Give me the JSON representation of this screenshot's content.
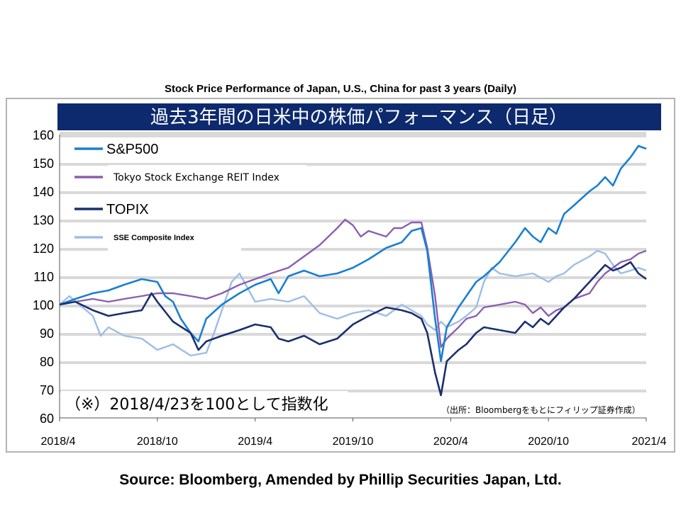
{
  "header": {
    "caption": "Stock Price Performance of Japan, U.S., China for past 3 years (Daily)"
  },
  "footer": {
    "caption": "Source: Bloomberg, Amended by Phillip Securities Japan, Ltd."
  },
  "chart_data": {
    "type": "line",
    "title": "過去3年間の日米中の株価パフォーマンス（日足）",
    "note": "（※）2018/4/23を100として指数化",
    "source_note": "（出所：Bloombergをもとにフィリップ証券作成）",
    "ylim": [
      60,
      160
    ],
    "yticks": [
      "160",
      "150",
      "140",
      "130",
      "120",
      "110",
      "100",
      "90",
      "80",
      "70",
      "60"
    ],
    "xlim": [
      2018.25,
      2021.25
    ],
    "xticks": [
      {
        "label": "2018/4",
        "x": 2018.25
      },
      {
        "label": "2018/10",
        "x": 2018.75
      },
      {
        "label": "2019/4",
        "x": 2019.25
      },
      {
        "label": "2019/10",
        "x": 2019.75
      },
      {
        "label": "2020/4",
        "x": 2020.25
      },
      {
        "label": "2020/10",
        "x": 2020.75
      },
      {
        "label": "2021/4",
        "x": 2021.25
      }
    ],
    "grid": true,
    "legend_position": "top-left",
    "series": [
      {
        "name": "S&P500",
        "color": "#1a7fd1",
        "width": 2.6,
        "legend_style": "big",
        "points": [
          [
            2018.25,
            100
          ],
          [
            2018.33,
            102
          ],
          [
            2018.42,
            104
          ],
          [
            2018.5,
            105
          ],
          [
            2018.58,
            107
          ],
          [
            2018.67,
            109
          ],
          [
            2018.75,
            108
          ],
          [
            2018.79,
            103
          ],
          [
            2018.83,
            101
          ],
          [
            2018.87,
            95
          ],
          [
            2018.92,
            90
          ],
          [
            2018.96,
            87
          ],
          [
            2019.0,
            95
          ],
          [
            2019.08,
            100
          ],
          [
            2019.17,
            104
          ],
          [
            2019.25,
            107
          ],
          [
            2019.33,
            109
          ],
          [
            2019.37,
            104
          ],
          [
            2019.42,
            110
          ],
          [
            2019.5,
            112
          ],
          [
            2019.58,
            110
          ],
          [
            2019.67,
            111
          ],
          [
            2019.75,
            113
          ],
          [
            2019.83,
            116
          ],
          [
            2019.92,
            120
          ],
          [
            2020.0,
            122
          ],
          [
            2020.05,
            126
          ],
          [
            2020.1,
            127
          ],
          [
            2020.13,
            119
          ],
          [
            2020.17,
            95
          ],
          [
            2020.2,
            80
          ],
          [
            2020.23,
            92
          ],
          [
            2020.29,
            99
          ],
          [
            2020.33,
            103
          ],
          [
            2020.38,
            108
          ],
          [
            2020.42,
            110
          ],
          [
            2020.5,
            115
          ],
          [
            2020.58,
            122
          ],
          [
            2020.63,
            127
          ],
          [
            2020.67,
            124
          ],
          [
            2020.71,
            122
          ],
          [
            2020.75,
            127
          ],
          [
            2020.79,
            125
          ],
          [
            2020.83,
            132
          ],
          [
            2020.88,
            135
          ],
          [
            2020.96,
            140
          ],
          [
            2021.0,
            142
          ],
          [
            2021.04,
            145
          ],
          [
            2021.08,
            142
          ],
          [
            2021.12,
            148
          ],
          [
            2021.17,
            152
          ],
          [
            2021.21,
            156
          ],
          [
            2021.25,
            155
          ]
        ]
      },
      {
        "name": "Tokyo Stock Exchange REIT Index",
        "color": "#8a5fb0",
        "width": 2.4,
        "legend_style": "mid",
        "points": [
          [
            2018.25,
            100
          ],
          [
            2018.33,
            101
          ],
          [
            2018.42,
            102
          ],
          [
            2018.5,
            101
          ],
          [
            2018.58,
            102
          ],
          [
            2018.67,
            103
          ],
          [
            2018.75,
            104
          ],
          [
            2018.83,
            104
          ],
          [
            2018.92,
            103
          ],
          [
            2019.0,
            102
          ],
          [
            2019.08,
            104
          ],
          [
            2019.17,
            107
          ],
          [
            2019.25,
            109
          ],
          [
            2019.33,
            111
          ],
          [
            2019.42,
            113
          ],
          [
            2019.5,
            117
          ],
          [
            2019.58,
            121
          ],
          [
            2019.67,
            127
          ],
          [
            2019.71,
            130
          ],
          [
            2019.75,
            128
          ],
          [
            2019.79,
            124
          ],
          [
            2019.83,
            126
          ],
          [
            2019.92,
            124
          ],
          [
            2019.96,
            127
          ],
          [
            2020.0,
            127
          ],
          [
            2020.05,
            129
          ],
          [
            2020.1,
            129
          ],
          [
            2020.13,
            120
          ],
          [
            2020.17,
            103
          ],
          [
            2020.2,
            85
          ],
          [
            2020.23,
            88
          ],
          [
            2020.29,
            92
          ],
          [
            2020.33,
            95
          ],
          [
            2020.38,
            96
          ],
          [
            2020.42,
            99
          ],
          [
            2020.5,
            100
          ],
          [
            2020.58,
            101
          ],
          [
            2020.63,
            100
          ],
          [
            2020.67,
            97
          ],
          [
            2020.71,
            99
          ],
          [
            2020.75,
            96
          ],
          [
            2020.79,
            98
          ],
          [
            2020.83,
            99
          ],
          [
            2020.88,
            102
          ],
          [
            2020.96,
            104
          ],
          [
            2021.0,
            108
          ],
          [
            2021.04,
            111
          ],
          [
            2021.08,
            113
          ],
          [
            2021.12,
            115
          ],
          [
            2021.17,
            116
          ],
          [
            2021.21,
            118
          ],
          [
            2021.25,
            119
          ]
        ]
      },
      {
        "name": "TOPIX",
        "color": "#1b2f6e",
        "width": 2.6,
        "legend_style": "big",
        "points": [
          [
            2018.25,
            100
          ],
          [
            2018.33,
            101
          ],
          [
            2018.42,
            98
          ],
          [
            2018.5,
            96
          ],
          [
            2018.58,
            97
          ],
          [
            2018.67,
            98
          ],
          [
            2018.72,
            104
          ],
          [
            2018.75,
            101
          ],
          [
            2018.83,
            94
          ],
          [
            2018.92,
            90
          ],
          [
            2018.96,
            84
          ],
          [
            2019.0,
            87
          ],
          [
            2019.08,
            89
          ],
          [
            2019.17,
            91
          ],
          [
            2019.25,
            93
          ],
          [
            2019.33,
            92
          ],
          [
            2019.37,
            88
          ],
          [
            2019.42,
            87
          ],
          [
            2019.5,
            89
          ],
          [
            2019.58,
            86
          ],
          [
            2019.67,
            88
          ],
          [
            2019.75,
            93
          ],
          [
            2019.83,
            96
          ],
          [
            2019.92,
            99
          ],
          [
            2020.0,
            98
          ],
          [
            2020.05,
            97
          ],
          [
            2020.1,
            95
          ],
          [
            2020.13,
            90
          ],
          [
            2020.17,
            76
          ],
          [
            2020.2,
            68
          ],
          [
            2020.23,
            80
          ],
          [
            2020.29,
            84
          ],
          [
            2020.33,
            86
          ],
          [
            2020.38,
            90
          ],
          [
            2020.42,
            92
          ],
          [
            2020.5,
            91
          ],
          [
            2020.58,
            90
          ],
          [
            2020.63,
            94
          ],
          [
            2020.67,
            92
          ],
          [
            2020.71,
            95
          ],
          [
            2020.75,
            93
          ],
          [
            2020.79,
            96
          ],
          [
            2020.83,
            99
          ],
          [
            2020.88,
            102
          ],
          [
            2020.96,
            108
          ],
          [
            2021.0,
            111
          ],
          [
            2021.04,
            114
          ],
          [
            2021.08,
            112
          ],
          [
            2021.12,
            113
          ],
          [
            2021.17,
            115
          ],
          [
            2021.21,
            111
          ],
          [
            2021.25,
            109
          ]
        ]
      },
      {
        "name": "SSE Composite Index",
        "color": "#9dbde6",
        "width": 2.4,
        "legend_style": "small",
        "points": [
          [
            2018.25,
            100
          ],
          [
            2018.3,
            103
          ],
          [
            2018.35,
            100
          ],
          [
            2018.42,
            96
          ],
          [
            2018.46,
            89
          ],
          [
            2018.5,
            92
          ],
          [
            2018.58,
            89
          ],
          [
            2018.67,
            88
          ],
          [
            2018.75,
            84
          ],
          [
            2018.83,
            86
          ],
          [
            2018.92,
            82
          ],
          [
            2019.0,
            83
          ],
          [
            2019.04,
            90
          ],
          [
            2019.08,
            98
          ],
          [
            2019.13,
            108
          ],
          [
            2019.17,
            111
          ],
          [
            2019.21,
            106
          ],
          [
            2019.25,
            101
          ],
          [
            2019.33,
            102
          ],
          [
            2019.42,
            101
          ],
          [
            2019.5,
            103
          ],
          [
            2019.58,
            97
          ],
          [
            2019.67,
            95
          ],
          [
            2019.75,
            97
          ],
          [
            2019.83,
            98
          ],
          [
            2019.92,
            96
          ],
          [
            2020.0,
            100
          ],
          [
            2020.05,
            98
          ],
          [
            2020.1,
            96
          ],
          [
            2020.13,
            93
          ],
          [
            2020.17,
            91
          ],
          [
            2020.2,
            94
          ],
          [
            2020.23,
            92
          ],
          [
            2020.29,
            94
          ],
          [
            2020.33,
            96
          ],
          [
            2020.38,
            99
          ],
          [
            2020.42,
            108
          ],
          [
            2020.46,
            113
          ],
          [
            2020.5,
            111
          ],
          [
            2020.58,
            110
          ],
          [
            2020.67,
            111
          ],
          [
            2020.75,
            108
          ],
          [
            2020.79,
            110
          ],
          [
            2020.83,
            111
          ],
          [
            2020.88,
            114
          ],
          [
            2020.96,
            117
          ],
          [
            2021.0,
            119
          ],
          [
            2021.04,
            118
          ],
          [
            2021.08,
            114
          ],
          [
            2021.12,
            111
          ],
          [
            2021.17,
            112
          ],
          [
            2021.21,
            113
          ],
          [
            2021.25,
            112
          ]
        ]
      }
    ]
  }
}
